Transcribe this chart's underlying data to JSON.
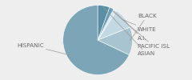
{
  "labels": [
    "HISPANIC",
    "BLACK",
    "WHITE",
    "A.I.",
    "PACIFIC ISL",
    "ASIAN"
  ],
  "values": [
    68,
    13,
    10,
    1.5,
    2,
    5.5
  ],
  "colors": [
    "#7da5b8",
    "#a8c4d0",
    "#c2d9e3",
    "#d5e8ef",
    "#6a9db5",
    "#5a8fa3"
  ],
  "startangle": 90,
  "label_fontsize": 5.2,
  "background_color": "#eeeeee",
  "text_color": "#666666",
  "line_color": "#999999"
}
